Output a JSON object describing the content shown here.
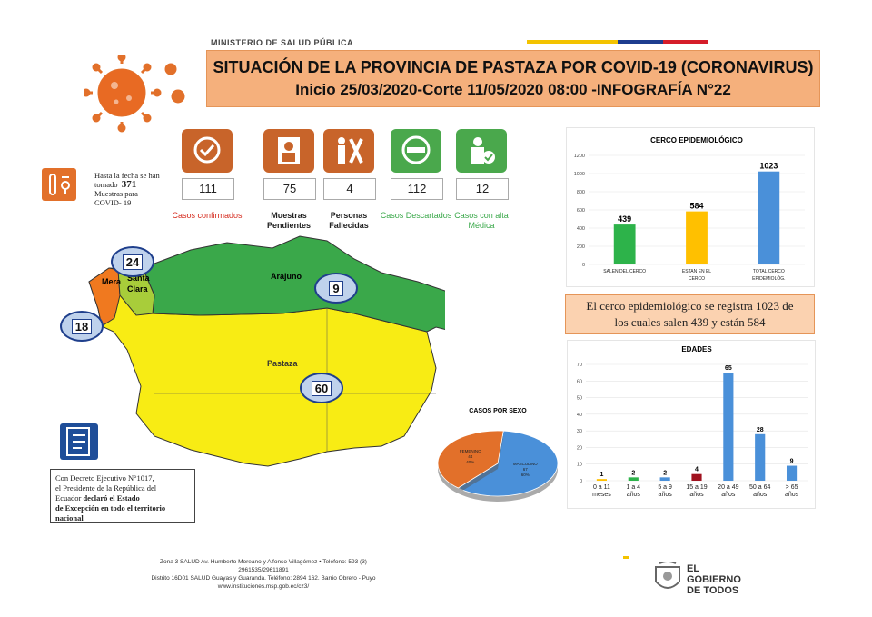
{
  "header": {
    "ministry": "MINISTERIO DE SALUD PÚBLICA",
    "title_line1": "SITUACIÓN DE LA PROVINCIA DE PASTAZA POR  COVID-19 (CORONAVIRUS)",
    "title_line2": "Inicio 25/03/2020-Corte 11/05/2020 08:00 -INFOGRAFÍA N°22"
  },
  "tests": {
    "line1": "Hasta la fecha se han",
    "line2_prefix": "tomado",
    "count": "371",
    "line3": "Muestras para",
    "line4": "COVID- 19"
  },
  "stats": [
    {
      "value": "111",
      "label": "Casos confirmados",
      "color": "#d52b1e",
      "icon": "check-icon",
      "bg": "#c8642a"
    },
    {
      "value": "75",
      "label": "Muestras Pendientes",
      "color": "#222222",
      "icon": "doctor-icon",
      "bg": "#c8642a"
    },
    {
      "value": "4",
      "label": "Personas Fallecidas",
      "color": "#222222",
      "icon": "person-x-icon",
      "bg": "#c8642a"
    },
    {
      "value": "112",
      "label": "Casos Descartados",
      "color": "#3aa84a",
      "icon": "minus-icon",
      "bg": "#4aa84c"
    },
    {
      "value": "12",
      "label": "Casos con alta Médica",
      "color": "#3aa84a",
      "icon": "person-check-icon",
      "bg": "#4aa84c"
    }
  ],
  "map": {
    "regions": {
      "arajuno": "Arajuno",
      "pastaza": "Pastaza",
      "mera": "Mera",
      "santa_clara_1": "Santa",
      "santa_clara_2": "Clara"
    },
    "badges": {
      "santa_clara": "24",
      "mera": "18",
      "arajuno": "9",
      "pastaza": "60"
    }
  },
  "note": {
    "l1": "Con Decreto Ejecutivo N°1017,",
    "l2": "el Presidente de la República del",
    "l3a": "Ecuador",
    "l3b": "declaró el Estado",
    "l4": "de Excepción en todo el territorio",
    "l5": "nacional"
  },
  "cerco_note": {
    "line1": "El cerco epidemiológico se registra 1023 de",
    "line2": "los cuales salen 439  y están 584"
  },
  "chart_data": [
    {
      "type": "bar",
      "title": "CERCO  EPIDEMIOLÓGICO",
      "categories": [
        "SALEN DEL CERCO",
        "ESTAN EN EL CERCO",
        "TOTAL  CERCO EPIDEMIOLÓG."
      ],
      "values": [
        439,
        584,
        1023
      ],
      "colors": [
        "#2db34a",
        "#ffc000",
        "#4a90d9"
      ],
      "ylim": [
        0,
        1200
      ],
      "yticks": [
        0,
        200,
        400,
        600,
        800,
        1000,
        1200
      ],
      "grid": true
    },
    {
      "type": "bar",
      "title": "EDADES",
      "categories": [
        "0 a 11 meses",
        "1 a 4 años",
        "5 a 9 años",
        "15 a 19 años",
        "20 a 49 años",
        "50 a 64 años",
        "> 65 años"
      ],
      "values": [
        1,
        2,
        2,
        4,
        65,
        28,
        9
      ],
      "colors": [
        "#ffc000",
        "#2db34a",
        "#4a90d9",
        "#a0121f",
        "#4a90d9",
        "#4a90d9",
        "#4a90d9"
      ],
      "ylim": [
        0,
        70
      ],
      "yticks": [
        0,
        10,
        20,
        30,
        40,
        50,
        60,
        70
      ],
      "grid": true
    },
    {
      "type": "pie",
      "title": "CASOS POR SEXO",
      "categories": [
        "MASCULINO",
        "FEMENINO"
      ],
      "counts": [
        "67",
        "44"
      ],
      "percents": [
        "60%",
        "40%"
      ],
      "values": [
        60,
        40
      ],
      "colors": [
        "#4a90d9",
        "#e2702a"
      ]
    }
  ],
  "footer": {
    "l1": "Zona 3 SALUD Av. Humberto Moreano y Alfonso Villagómez • Teléfono: 593 (3)",
    "l2": "2961535/29611891",
    "l3": "Distrito 16D01 SALUD Guayas y Guaranda. Teléfono: 2894 162. Barrio Obrero - Puyo",
    "l4": "www.instituciones.msp.gob.ec/cz3/"
  },
  "logo": {
    "l1": "EL",
    "l2": "GOBIERNO",
    "l3": "DE TODOS"
  }
}
